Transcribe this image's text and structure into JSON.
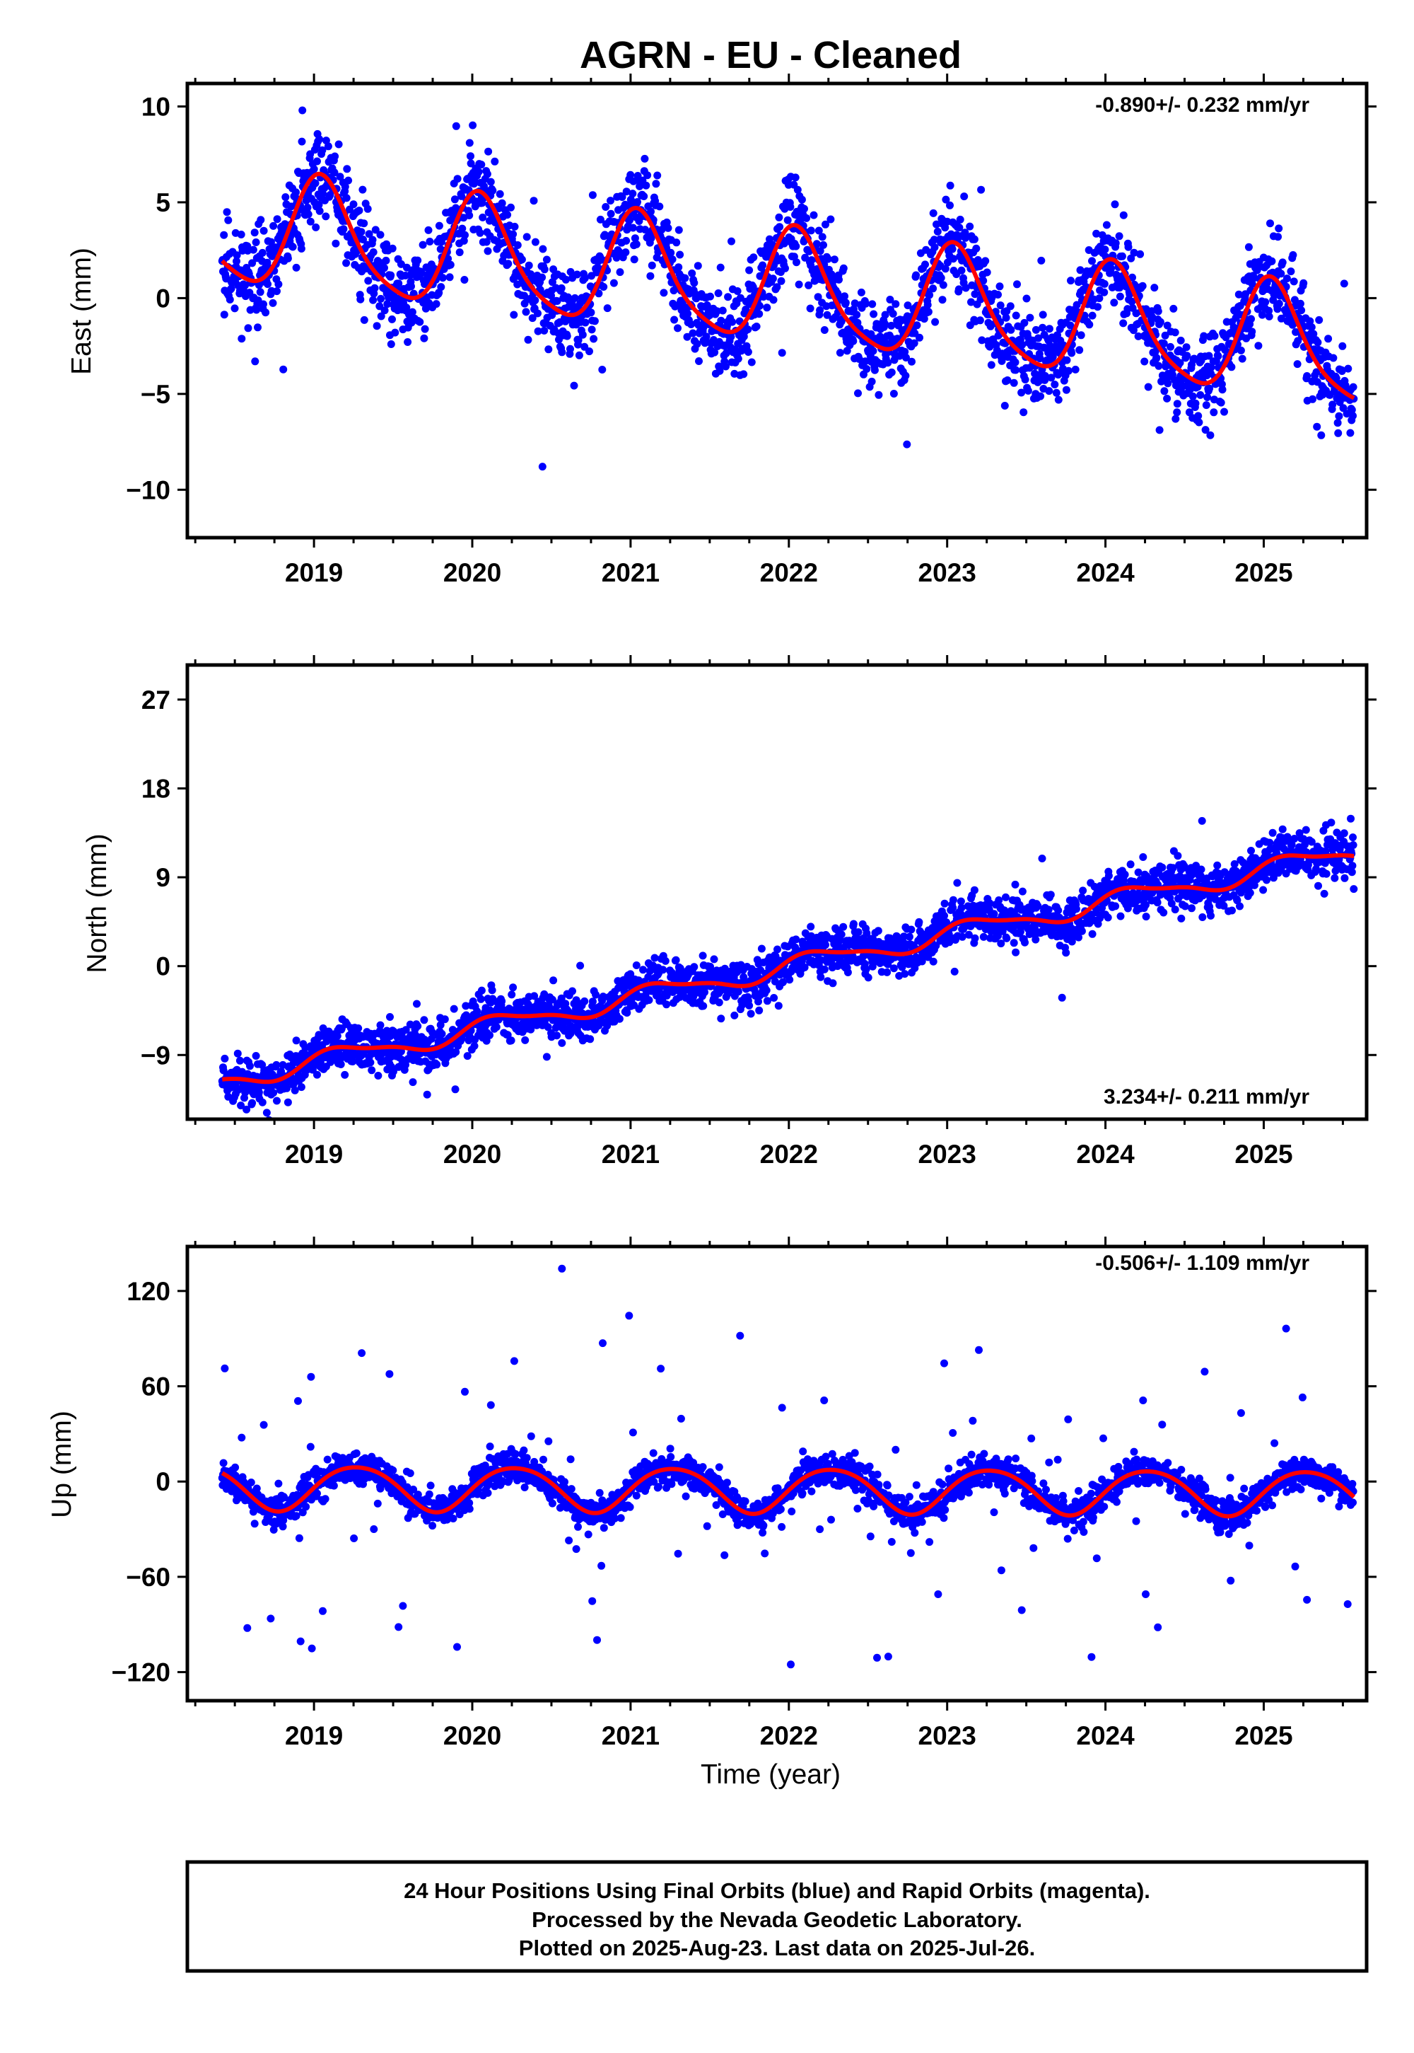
{
  "title": "AGRN  - EU - Cleaned",
  "xlabel": "Time (year)",
  "colors": {
    "final_orbits": "#0000ff",
    "rapid_orbits": "#ff00ff",
    "model": "#ff0000",
    "axis": "#000000"
  },
  "footer": {
    "lines": [
      "24 Hour Positions Using Final Orbits (blue) and Rapid Orbits (magenta).",
      "Processed by the Nevada Geodetic Laboratory.",
      "Plotted on 2025-Aug-23. Last data on 2025-Jul-26."
    ]
  },
  "chart_data": [
    {
      "type": "scatter",
      "component": "east",
      "ylabel": "East (mm)",
      "rate_text": "-0.890+/- 0.232 mm/yr",
      "rate_position": "top-right",
      "xlim": [
        2018.2,
        2025.65
      ],
      "ylim": [
        -12.5,
        11.2
      ],
      "yticks": [
        10,
        5,
        0,
        -5,
        -10
      ],
      "ytick_labels": [
        "10",
        "5",
        "0",
        "−5",
        "−10"
      ],
      "xticks": [
        2019,
        2020,
        2021,
        2022,
        2023,
        2024,
        2025
      ],
      "xtick_labels": [
        "2019",
        "2020",
        "2021",
        "2022",
        "2023",
        "2024",
        "2025"
      ],
      "grid": false,
      "series": [
        {
          "role": "daily_positions",
          "model": {
            "offset": 0.44,
            "rate": -0.89,
            "amp_annual": 2.9,
            "phase_annual": 0.35,
            "amp_semiannual": 0.55,
            "phase_semiannual": 0.15,
            "noise_sd": 1.2,
            "outlier_rate": 0.015,
            "outlier_sd": 3.0
          }
        },
        {
          "role": "fitted_model",
          "model": {
            "offset": 0.44,
            "rate": -0.89,
            "amp_annual": 2.9,
            "phase_annual": 0.35,
            "amp_semiannual": 0.55,
            "phase_semiannual": 0.15
          }
        }
      ]
    },
    {
      "type": "scatter",
      "component": "north",
      "ylabel": "North (mm)",
      "rate_text": "3.234+/- 0.211 mm/yr",
      "rate_position": "bottom-right",
      "xlim": [
        2018.2,
        2025.65
      ],
      "ylim": [
        -15.5,
        30.5
      ],
      "yticks": [
        27,
        18,
        9,
        0,
        -9
      ],
      "ytick_labels": [
        "27",
        "18",
        "9",
        "0",
        "−9"
      ],
      "xticks": [
        2019,
        2020,
        2021,
        2022,
        2023,
        2024,
        2025
      ],
      "xtick_labels": [
        "2019",
        "2020",
        "2021",
        "2022",
        "2023",
        "2024",
        "2025"
      ],
      "grid": false,
      "series": [
        {
          "role": "daily_positions",
          "model": {
            "offset": 0.0,
            "rate": 3.234,
            "amp_annual": 0.95,
            "phase_annual": 1.2,
            "amp_semiannual": 0.3,
            "phase_semiannual": 0.6,
            "noise_sd": 1.2,
            "outlier_rate": 0.012,
            "outlier_sd": 4.0
          }
        },
        {
          "role": "fitted_model",
          "model": {
            "offset": 0.0,
            "rate": 3.234,
            "amp_annual": 0.95,
            "phase_annual": 1.2,
            "amp_semiannual": 0.3,
            "phase_semiannual": 0.6
          }
        }
      ]
    },
    {
      "type": "scatter",
      "component": "up",
      "ylabel": "Up (mm)",
      "rate_text": "-0.506+/- 1.109 mm/yr",
      "rate_position": "top-right",
      "xlim": [
        2018.2,
        2025.65
      ],
      "ylim": [
        -138,
        148
      ],
      "yticks": [
        120,
        60,
        0,
        -60,
        -120
      ],
      "ytick_labels": [
        "120",
        "60",
        "0",
        "−60",
        "−120"
      ],
      "xticks": [
        2019,
        2020,
        2021,
        2022,
        2023,
        2024,
        2025
      ],
      "xtick_labels": [
        "2019",
        "2020",
        "2021",
        "2022",
        "2023",
        "2024",
        "2025"
      ],
      "grid": false,
      "series": [
        {
          "role": "daily_positions",
          "model": {
            "offset": -5.0,
            "rate": -0.506,
            "amp_annual": 14.0,
            "phase_annual": 1.7,
            "amp_semiannual": 1.5,
            "phase_semiannual": 0.4,
            "noise_sd": 5.0,
            "outlier_rate": 0.06,
            "outlier_sd": 60
          }
        },
        {
          "role": "fitted_model",
          "model": {
            "offset": -5.0,
            "rate": -0.506,
            "amp_annual": 14.0,
            "phase_annual": 1.7,
            "amp_semiannual": 1.5,
            "phase_semiannual": 0.4
          }
        }
      ]
    }
  ],
  "time_series": {
    "start_year": 2018.42,
    "end_year": 2025.57
  }
}
